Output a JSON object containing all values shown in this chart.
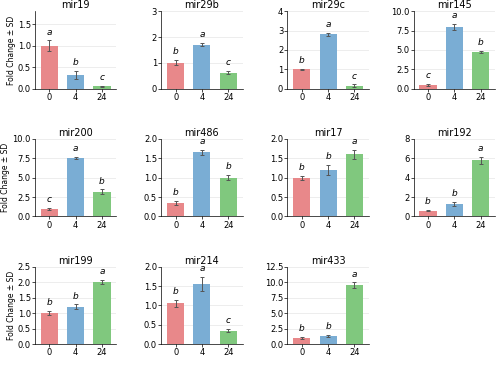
{
  "subplots": [
    {
      "title": "mir19",
      "values": [
        1.0,
        0.32,
        0.05
      ],
      "errors": [
        0.12,
        0.1,
        0.01
      ],
      "letters": [
        "a",
        "b",
        "c"
      ],
      "ylim": [
        0,
        1.8
      ],
      "yticks": [
        0.0,
        0.5,
        1.0,
        1.5
      ],
      "ytick_labels": [
        "0.0",
        "0.5",
        "1.0",
        "1.5"
      ]
    },
    {
      "title": "mir29b",
      "values": [
        1.0,
        1.7,
        0.62
      ],
      "errors": [
        0.1,
        0.06,
        0.07
      ],
      "letters": [
        "b",
        "a",
        "c"
      ],
      "ylim": [
        0,
        3.0
      ],
      "yticks": [
        0,
        1,
        2,
        3
      ],
      "ytick_labels": [
        "0",
        "1",
        "2",
        "3"
      ]
    },
    {
      "title": "mir29c",
      "values": [
        1.0,
        2.8,
        0.15
      ],
      "errors": [
        0.04,
        0.06,
        0.07
      ],
      "letters": [
        "b",
        "a",
        "c"
      ],
      "ylim": [
        0,
        4.0
      ],
      "yticks": [
        0,
        1,
        2,
        3,
        4
      ],
      "ytick_labels": [
        "0",
        "1",
        "2",
        "3",
        "4"
      ]
    },
    {
      "title": "mir145",
      "values": [
        0.45,
        8.0,
        4.7
      ],
      "errors": [
        0.12,
        0.38,
        0.14
      ],
      "letters": [
        "c",
        "a",
        "b"
      ],
      "ylim": [
        0,
        10.0
      ],
      "yticks": [
        0.0,
        2.5,
        5.0,
        7.5,
        10.0
      ],
      "ytick_labels": [
        "0.0",
        "2.5",
        "5.0",
        "7.5",
        "10.0"
      ]
    },
    {
      "title": "mir200",
      "values": [
        1.0,
        7.5,
        3.2
      ],
      "errors": [
        0.12,
        0.15,
        0.28
      ],
      "letters": [
        "c",
        "a",
        "b"
      ],
      "ylim": [
        0,
        10.0
      ],
      "yticks": [
        0.0,
        2.5,
        5.0,
        7.5,
        10.0
      ],
      "ytick_labels": [
        "0.0",
        "2.5",
        "5.0",
        "7.5",
        "10.0"
      ]
    },
    {
      "title": "mir486",
      "values": [
        0.35,
        1.65,
        1.0
      ],
      "errors": [
        0.05,
        0.07,
        0.07
      ],
      "letters": [
        "b",
        "a",
        "b"
      ],
      "ylim": [
        0,
        2.0
      ],
      "yticks": [
        0.0,
        0.5,
        1.0,
        1.5,
        2.0
      ],
      "ytick_labels": [
        "0.0",
        "0.5",
        "1.0",
        "1.5",
        "2.0"
      ]
    },
    {
      "title": "mir17",
      "values": [
        1.0,
        1.2,
        1.6
      ],
      "errors": [
        0.05,
        0.12,
        0.12
      ],
      "letters": [
        "b",
        "b",
        "a"
      ],
      "ylim": [
        0,
        2.0
      ],
      "yticks": [
        0.0,
        0.5,
        1.0,
        1.5,
        2.0
      ],
      "ytick_labels": [
        "0.0",
        "0.5",
        "1.0",
        "1.5",
        "2.0"
      ]
    },
    {
      "title": "mir192",
      "values": [
        0.6,
        1.3,
        5.8
      ],
      "errors": [
        0.08,
        0.18,
        0.35
      ],
      "letters": [
        "b",
        "b",
        "a"
      ],
      "ylim": [
        0,
        8.0
      ],
      "yticks": [
        0,
        2,
        4,
        6,
        8
      ],
      "ytick_labels": [
        "0",
        "2",
        "4",
        "6",
        "8"
      ]
    },
    {
      "title": "mir199",
      "values": [
        1.0,
        1.2,
        2.0
      ],
      "errors": [
        0.06,
        0.08,
        0.06
      ],
      "letters": [
        "b",
        "b",
        "a"
      ],
      "ylim": [
        0,
        2.5
      ],
      "yticks": [
        0.0,
        0.5,
        1.0,
        1.5,
        2.0,
        2.5
      ],
      "ytick_labels": [
        "0.0",
        "0.5",
        "1.0",
        "1.5",
        "2.0",
        "2.5"
      ]
    },
    {
      "title": "mir214",
      "values": [
        1.05,
        1.55,
        0.35
      ],
      "errors": [
        0.1,
        0.18,
        0.04
      ],
      "letters": [
        "b",
        "a",
        "c"
      ],
      "ylim": [
        0,
        2.0
      ],
      "yticks": [
        0.0,
        0.5,
        1.0,
        1.5,
        2.0
      ],
      "ytick_labels": [
        "0.0",
        "0.5",
        "1.0",
        "1.5",
        "2.0"
      ]
    },
    {
      "title": "mir433",
      "values": [
        1.0,
        1.3,
        9.5
      ],
      "errors": [
        0.12,
        0.12,
        0.45
      ],
      "letters": [
        "b",
        "b",
        "a"
      ],
      "ylim": [
        0,
        12.5
      ],
      "yticks": [
        0.0,
        2.5,
        5.0,
        7.5,
        10.0,
        12.5
      ],
      "ytick_labels": [
        "0.0",
        "2.5",
        "5.0",
        "7.5",
        "10.0",
        "12.5"
      ]
    }
  ],
  "colors": [
    "#E8888A",
    "#7AADD4",
    "#80C87E"
  ],
  "xlabel_vals": [
    "0",
    "4",
    "24"
  ],
  "bar_width": 0.65,
  "letter_fontsize": 6.5,
  "title_fontsize": 7,
  "tick_fontsize": 6,
  "ylabel": "Fold Change ± SD",
  "ylabel_fontsize": 5.5,
  "background_color": "#FFFFFF",
  "grid_color": "#E0E0E0"
}
